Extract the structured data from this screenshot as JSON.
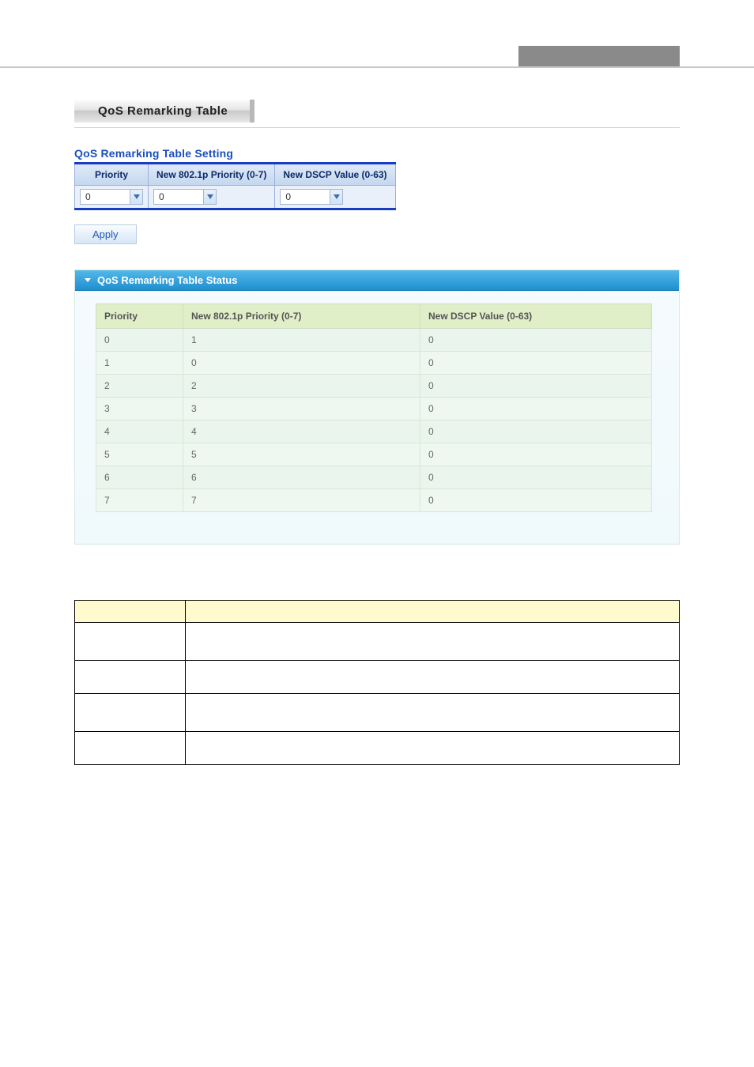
{
  "page_title": "QoS Remarking Table",
  "setting": {
    "title": "QoS Remarking Table Setting",
    "headers": [
      "Priority",
      "New 802.1p Priority (0-7)",
      "New DSCP Value (0-63)"
    ],
    "priority_value": "0",
    "new_8021p_value": "0",
    "new_dscp_value": "0",
    "apply_label": "Apply"
  },
  "status": {
    "title": "QoS Remarking Table Status",
    "headers": [
      "Priority",
      "New 802.1p Priority (0-7)",
      "New DSCP Value (0-63)"
    ],
    "rows": [
      {
        "priority": "0",
        "p8021": "1",
        "dscp": "0"
      },
      {
        "priority": "1",
        "p8021": "0",
        "dscp": "0"
      },
      {
        "priority": "2",
        "p8021": "2",
        "dscp": "0"
      },
      {
        "priority": "3",
        "p8021": "3",
        "dscp": "0"
      },
      {
        "priority": "4",
        "p8021": "4",
        "dscp": "0"
      },
      {
        "priority": "5",
        "p8021": "5",
        "dscp": "0"
      },
      {
        "priority": "6",
        "p8021": "6",
        "dscp": "0"
      },
      {
        "priority": "7",
        "p8021": "7",
        "dscp": "0"
      }
    ]
  },
  "desc_table": {
    "num_body_rows": 4
  },
  "colors": {
    "link_blue": "#1a4fbf",
    "header_grad_top": "#dfe9f7",
    "status_header_top": "#52b8e8",
    "status_row_bg": "#eef7f0",
    "desc_header_bg": "#fffbcf"
  }
}
